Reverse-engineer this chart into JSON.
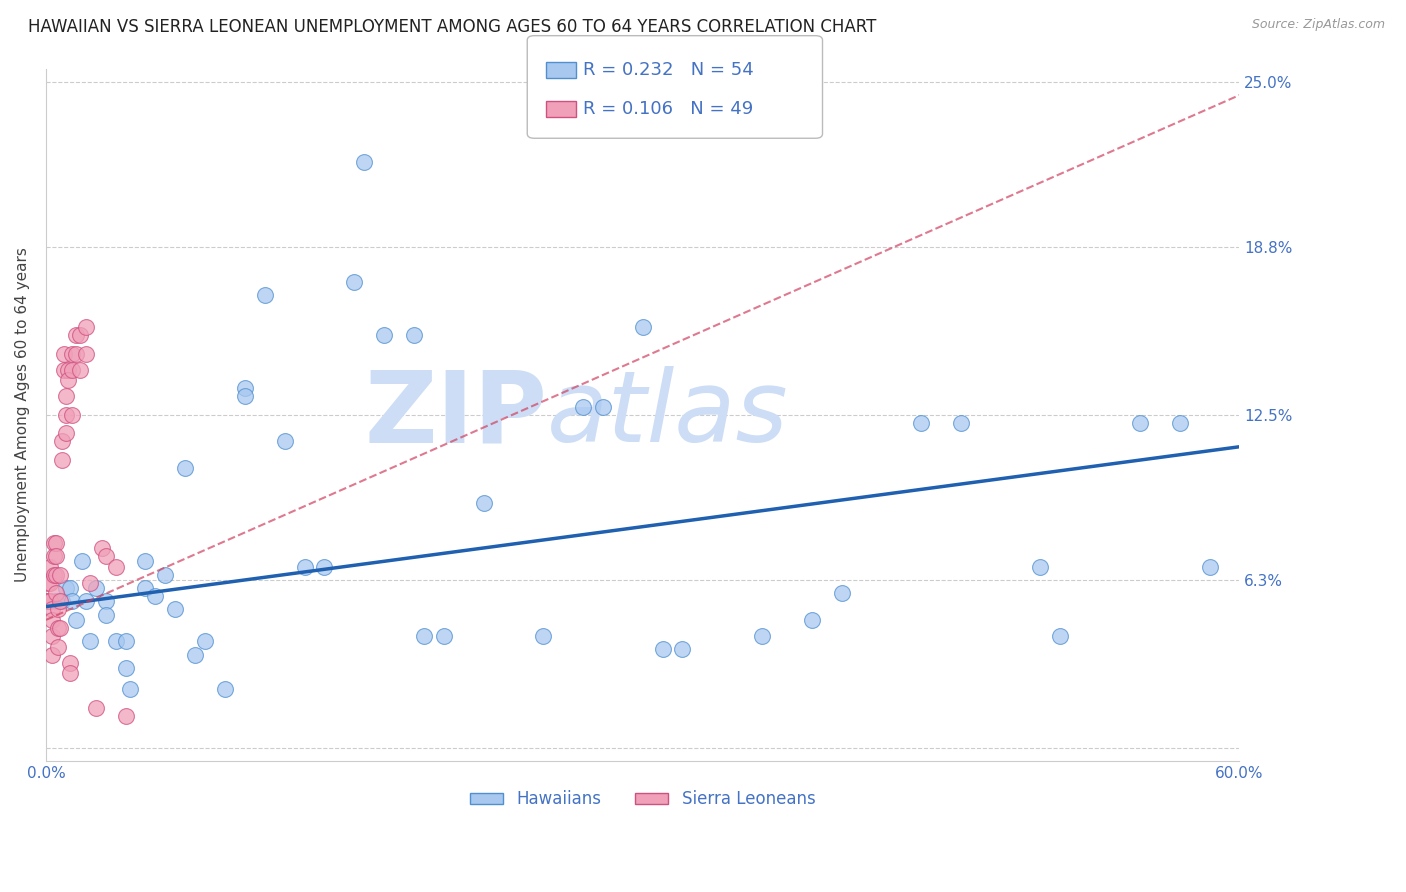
{
  "title": "HAWAIIAN VS SIERRA LEONEAN UNEMPLOYMENT AMONG AGES 60 TO 64 YEARS CORRELATION CHART",
  "source": "Source: ZipAtlas.com",
  "ylabel": "Unemployment Among Ages 60 to 64 years",
  "xlim": [
    0,
    0.6
  ],
  "ylim": [
    -0.005,
    0.255
  ],
  "xticks": [
    0.0,
    0.1,
    0.2,
    0.3,
    0.4,
    0.5,
    0.6
  ],
  "xticklabels": [
    "0.0%",
    "",
    "",
    "",
    "",
    "",
    "60.0%"
  ],
  "ytick_values": [
    0.0,
    0.063,
    0.125,
    0.188,
    0.25
  ],
  "ytick_labels": [
    "",
    "6.3%",
    "12.5%",
    "18.8%",
    "25.0%"
  ],
  "hawaiian_color": "#a8c8f0",
  "sierra_color": "#f0a0b8",
  "hawaiian_edge_color": "#5090d0",
  "sierra_edge_color": "#d05080",
  "hawaiian_line_color": "#2060b0",
  "sierra_line_color": "#d04060",
  "legend_r_hawaiian": "R = 0.232",
  "legend_n_hawaiian": "N = 54",
  "legend_r_sierra": "R = 0.106",
  "legend_n_sierra": "N = 49",
  "hawaiian_x": [
    0.005,
    0.008,
    0.01,
    0.012,
    0.013,
    0.015,
    0.018,
    0.02,
    0.022,
    0.025,
    0.03,
    0.03,
    0.035,
    0.04,
    0.04,
    0.042,
    0.05,
    0.05,
    0.055,
    0.06,
    0.065,
    0.07,
    0.075,
    0.08,
    0.09,
    0.1,
    0.1,
    0.11,
    0.12,
    0.13,
    0.14,
    0.155,
    0.16,
    0.17,
    0.185,
    0.19,
    0.2,
    0.22,
    0.25,
    0.27,
    0.28,
    0.3,
    0.31,
    0.32,
    0.36,
    0.385,
    0.4,
    0.44,
    0.46,
    0.5,
    0.51,
    0.55,
    0.57,
    0.585
  ],
  "hawaiian_y": [
    0.055,
    0.055,
    0.06,
    0.06,
    0.055,
    0.048,
    0.07,
    0.055,
    0.04,
    0.06,
    0.055,
    0.05,
    0.04,
    0.04,
    0.03,
    0.022,
    0.07,
    0.06,
    0.057,
    0.065,
    0.052,
    0.105,
    0.035,
    0.04,
    0.022,
    0.135,
    0.132,
    0.17,
    0.115,
    0.068,
    0.068,
    0.175,
    0.22,
    0.155,
    0.155,
    0.042,
    0.042,
    0.092,
    0.042,
    0.128,
    0.128,
    0.158,
    0.037,
    0.037,
    0.042,
    0.048,
    0.058,
    0.122,
    0.122,
    0.068,
    0.042,
    0.122,
    0.122,
    0.068
  ],
  "sierra_x": [
    0.0,
    0.001,
    0.001,
    0.002,
    0.002,
    0.002,
    0.003,
    0.003,
    0.003,
    0.003,
    0.004,
    0.004,
    0.004,
    0.005,
    0.005,
    0.005,
    0.005,
    0.006,
    0.006,
    0.006,
    0.007,
    0.007,
    0.007,
    0.008,
    0.008,
    0.009,
    0.009,
    0.01,
    0.01,
    0.01,
    0.011,
    0.011,
    0.012,
    0.012,
    0.013,
    0.013,
    0.013,
    0.015,
    0.015,
    0.017,
    0.017,
    0.02,
    0.02,
    0.022,
    0.025,
    0.028,
    0.03,
    0.035,
    0.04
  ],
  "sierra_y": [
    0.055,
    0.055,
    0.062,
    0.068,
    0.062,
    0.055,
    0.052,
    0.048,
    0.042,
    0.035,
    0.077,
    0.072,
    0.065,
    0.077,
    0.072,
    0.065,
    0.058,
    0.052,
    0.045,
    0.038,
    0.065,
    0.055,
    0.045,
    0.115,
    0.108,
    0.148,
    0.142,
    0.132,
    0.125,
    0.118,
    0.142,
    0.138,
    0.032,
    0.028,
    0.148,
    0.142,
    0.125,
    0.155,
    0.148,
    0.155,
    0.142,
    0.158,
    0.148,
    0.062,
    0.015,
    0.075,
    0.072,
    0.068,
    0.012
  ],
  "hawaiian_trend_x": [
    0.0,
    0.6
  ],
  "hawaiian_trend_y": [
    0.053,
    0.113
  ],
  "sierra_trend_x": [
    0.0,
    0.6
  ],
  "sierra_trend_y": [
    0.048,
    0.245
  ],
  "background_color": "#ffffff",
  "grid_color": "#cccccc",
  "title_fontsize": 12,
  "label_fontsize": 11,
  "tick_fontsize": 11,
  "watermark_zip": "ZIP",
  "watermark_atlas": "atlas",
  "watermark_color": "#ccddf5"
}
